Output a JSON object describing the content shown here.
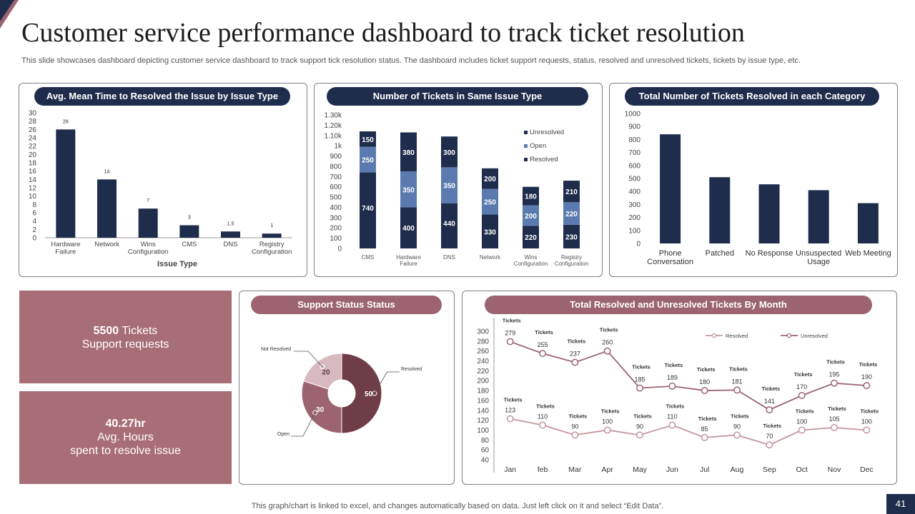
{
  "title": "Customer service performance dashboard to track ticket resolution",
  "subtitle": "This slide showcases dashboard depicting customer service dashboard to track support tick resolution status. The dashboard includes ticket support requests, status, resolved and unresolved tickets, tickets by issue type, etc.",
  "stats": {
    "tickets_value": "5500",
    "tickets_unit": " Tickets",
    "tickets_label": "Support requests",
    "hours_value": "40.27hr",
    "hours_label1": "Avg. Hours",
    "hours_label2": "spent to resolve issue"
  },
  "footer": "This graph/chart is linked to excel,  and changes automatically based on data. Just left click on it and select “Edit Data”.",
  "page_number": "41",
  "colors": {
    "navy": "#1f2d4d",
    "steel_blue": "#5b7bb0",
    "rose": "#9b6470",
    "rose_box": "#a86e78",
    "light_rose": "#d8b9bf",
    "dark_maroon": "#6e3d47",
    "rose_line": "#c4959c"
  },
  "chart_data": [
    {
      "id": "mean_time",
      "type": "bar",
      "title": "Avg. Mean Time to Resolved the Issue by Issue Type",
      "xlabel": "Issue Type",
      "ylabel": "",
      "categories": [
        "Hardware\nFailure",
        "Network",
        "Wins\nConfiguration",
        "CMS",
        "DNS",
        "Registry\nConfiguration"
      ],
      "values": [
        26,
        14,
        7,
        3,
        1.5,
        1
      ],
      "data_labels": [
        "26",
        "14",
        "7",
        "3",
        "1.5",
        "1"
      ],
      "ylim": [
        0,
        30
      ],
      "yticks": [
        "0",
        "2",
        "4",
        "6",
        "8",
        "10",
        "12",
        "14",
        "16",
        "18",
        "20",
        "22",
        "24",
        "26",
        "28",
        "30"
      ],
      "grid": false
    },
    {
      "id": "same_issue",
      "type": "bar",
      "stacked": true,
      "title": "Number of Tickets in Same Issue Type",
      "categories": [
        "CMS",
        "Hardware\nFailure",
        "DNS",
        "Network",
        "Wins\nConfiguration",
        "Registry\nConfiguration"
      ],
      "series": [
        {
          "name": "Resolved",
          "values": [
            740,
            400,
            440,
            330,
            220,
            230
          ]
        },
        {
          "name": "Open",
          "values": [
            250,
            350,
            350,
            250,
            200,
            220
          ]
        },
        {
          "name": "Unresolved",
          "values": [
            150,
            380,
            300,
            200,
            180,
            210
          ]
        }
      ],
      "ylim": [
        0,
        1300
      ],
      "yticks": [
        "0",
        "100",
        "200",
        "300",
        "400",
        "500",
        "600",
        "700",
        "800",
        "900",
        "1k",
        "1.10k",
        "1.20k",
        "1.30k"
      ],
      "legend": [
        "Unresolved",
        "Open",
        "Resolved"
      ],
      "legend_position": "right",
      "grid": false
    },
    {
      "id": "resolved_category",
      "type": "bar",
      "title": "Total Number of Tickets Resolved in each Category",
      "categories": [
        "Phone\nConversation",
        "Patched",
        "No Response",
        "Unsuspected\nUsage",
        "Web Meeting"
      ],
      "values": [
        840,
        510,
        455,
        410,
        310
      ],
      "ylim": [
        0,
        1000
      ],
      "yticks": [
        "0",
        "100",
        "200",
        "300",
        "400",
        "500",
        "600",
        "700",
        "800",
        "900",
        "1000"
      ],
      "grid": false
    },
    {
      "id": "support_status",
      "type": "pie",
      "donut": true,
      "title": "Support Status Status",
      "slices": [
        {
          "label": "Resolved",
          "value": 50
        },
        {
          "label": "Open",
          "value": 30
        },
        {
          "label": "Not Resolved",
          "value": 20
        }
      ]
    },
    {
      "id": "by_month",
      "type": "line",
      "title": "Total Resolved and Unresolved Tickets By Month",
      "categories": [
        "Jan",
        "feb",
        "Mar",
        "Apr",
        "May",
        "Jun",
        "Jul",
        "Aug",
        "Sep",
        "Oct",
        "Nov",
        "Dec"
      ],
      "series": [
        {
          "name": "Resolved",
          "values": [
            123,
            110,
            90,
            100,
            90,
            110,
            85,
            90,
            70,
            100,
            105,
            100
          ]
        },
        {
          "name": "Unresolved",
          "values": [
            279,
            255,
            237,
            260,
            185,
            189,
            180,
            181,
            141,
            170,
            195,
            190
          ]
        }
      ],
      "point_annotation": "Tickets",
      "ylim": [
        40,
        300
      ],
      "yticks": [
        "40",
        "60",
        "80",
        "100",
        "120",
        "140",
        "160",
        "180",
        "200",
        "220",
        "240",
        "260",
        "280",
        "300"
      ],
      "legend": [
        "Resolved",
        "Unresolved"
      ],
      "legend_position": "top-right",
      "grid": false
    }
  ]
}
